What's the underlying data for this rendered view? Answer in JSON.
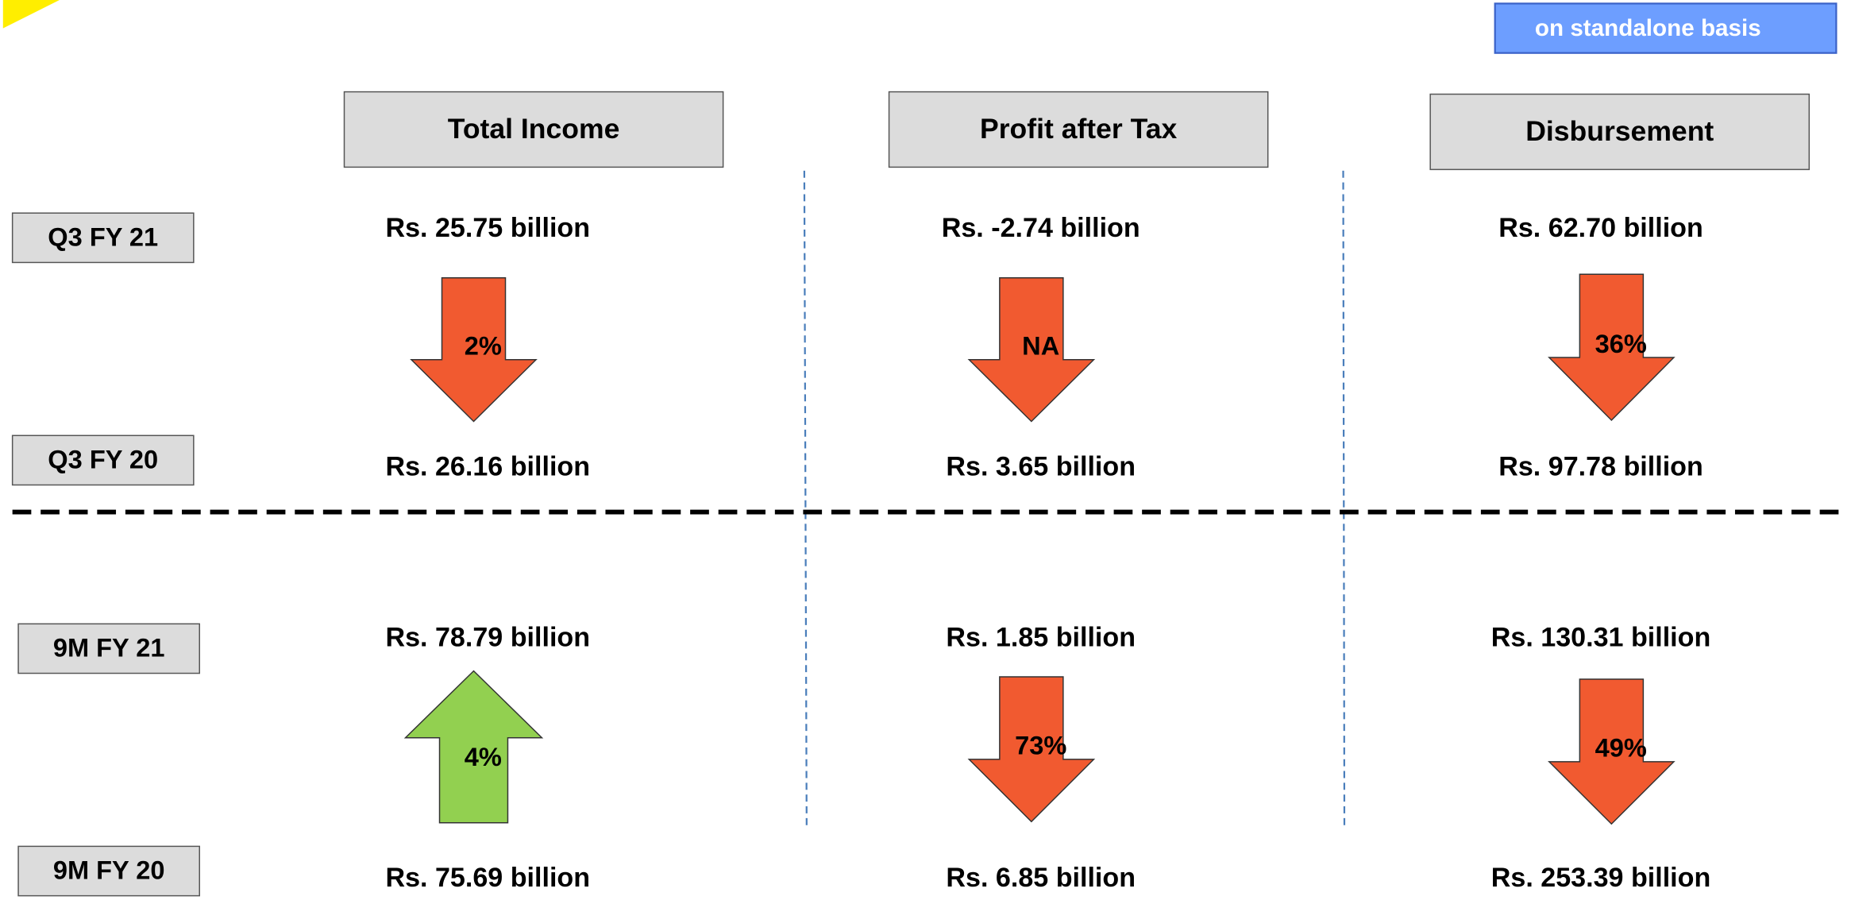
{
  "badge": "on standalone basis",
  "columns": [
    "Total Income",
    "Profit after Tax",
    "Disbursement"
  ],
  "colors": {
    "up": "#92d050",
    "down": "#f15a30"
  },
  "sections": [
    {
      "current_label": "Q3 FY 21",
      "previous_label": "Q3 FY 20",
      "current_values": [
        "Rs. 25.75 billion",
        "Rs. -2.74 billion",
        "Rs. 62.70 billion"
      ],
      "previous_values": [
        "Rs. 26.16 billion",
        "Rs. 3.65 billion",
        "Rs. 97.78 billion"
      ],
      "changes": [
        {
          "label": "2%",
          "direction": "down"
        },
        {
          "label": "NA",
          "direction": "down"
        },
        {
          "label": "36%",
          "direction": "down"
        }
      ]
    },
    {
      "current_label": "9M FY 21",
      "previous_label": "9M FY 20",
      "current_values": [
        "Rs. 78.79 billion",
        "Rs. 1.85 billion",
        "Rs. 130.31 billion"
      ],
      "previous_values": [
        "Rs. 75.69 billion",
        "Rs. 6.85 billion",
        "Rs. 253.39 billion"
      ],
      "changes": [
        {
          "label": "4%",
          "direction": "up"
        },
        {
          "label": "73%",
          "direction": "down"
        },
        {
          "label": "49%",
          "direction": "down"
        }
      ]
    }
  ]
}
